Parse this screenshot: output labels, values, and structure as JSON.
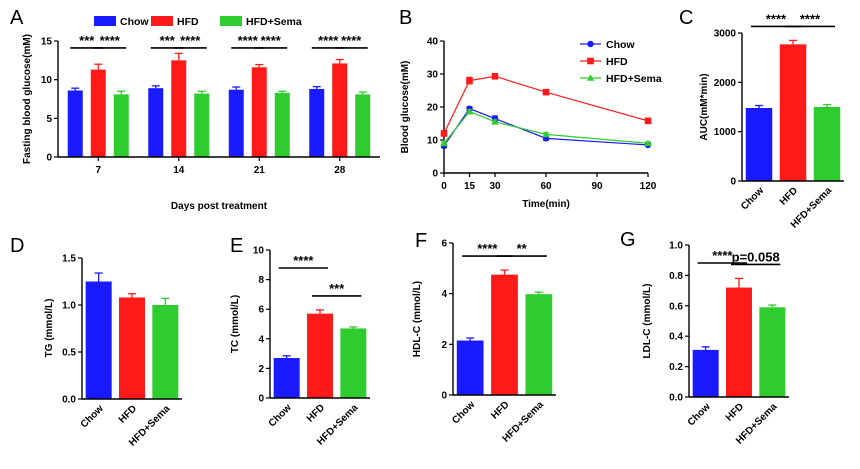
{
  "colors": {
    "Chow": "#1a1aff",
    "HFD": "#ff1a1a",
    "HFD+Sema": "#2ecc2e"
  },
  "chart_data": [
    {
      "panel": "A",
      "type": "bar",
      "xlabel": "Days post treatment",
      "ylabel": "Fasting blood glucose(mM)",
      "categories": [
        "7",
        "14",
        "21",
        "28"
      ],
      "ylim": [
        0,
        15
      ],
      "yticks": [
        "0",
        "5",
        "10",
        "15"
      ],
      "legend": [
        "Chow",
        "HFD",
        "HFD+Sema"
      ],
      "legend_position": "top",
      "series": [
        {
          "name": "Chow",
          "values": [
            8.6,
            8.9,
            8.7,
            8.8
          ],
          "errors": [
            0.3,
            0.3,
            0.35,
            0.3
          ]
        },
        {
          "name": "HFD",
          "values": [
            11.3,
            12.5,
            11.6,
            12.1
          ],
          "errors": [
            0.7,
            0.9,
            0.35,
            0.5
          ]
        },
        {
          "name": "HFD+Sema",
          "values": [
            8.1,
            8.2,
            8.3,
            8.1
          ],
          "errors": [
            0.4,
            0.3,
            0.2,
            0.3
          ]
        }
      ],
      "significance": [
        {
          "group": 0,
          "from": 0,
          "to": 1,
          "label": "***"
        },
        {
          "group": 0,
          "from": 1,
          "to": 2,
          "label": "****"
        },
        {
          "group": 1,
          "from": 0,
          "to": 1,
          "label": "***"
        },
        {
          "group": 1,
          "from": 1,
          "to": 2,
          "label": "****"
        },
        {
          "group": 2,
          "from": 0,
          "to": 1,
          "label": "****"
        },
        {
          "group": 2,
          "from": 1,
          "to": 2,
          "label": "****"
        },
        {
          "group": 3,
          "from": 0,
          "to": 1,
          "label": "****"
        },
        {
          "group": 3,
          "from": 1,
          "to": 2,
          "label": "****"
        }
      ]
    },
    {
      "panel": "B",
      "type": "line",
      "xlabel": "Time(min)",
      "ylabel": "Blood glucose(mM)",
      "x": [
        0,
        15,
        30,
        60,
        120
      ],
      "xticks": [
        "0",
        "15",
        "30",
        "60",
        "90",
        "120"
      ],
      "xtick_values": [
        0,
        15,
        30,
        60,
        90,
        120
      ],
      "xlim": [
        0,
        120
      ],
      "ylim": [
        0,
        40
      ],
      "yticks": [
        "0",
        "10",
        "20",
        "30",
        "40"
      ],
      "legend": [
        "Chow",
        "HFD",
        "HFD+Sema"
      ],
      "legend_position": "top-right",
      "series": [
        {
          "name": "Chow",
          "marker": "circle",
          "values": [
            8.2,
            19.5,
            16.5,
            10.5,
            8.5
          ],
          "errors": [
            0.5,
            0.6,
            0.8,
            0.5,
            0.3
          ]
        },
        {
          "name": "HFD",
          "marker": "square",
          "values": [
            12.0,
            28.0,
            29.3,
            24.5,
            15.8
          ],
          "errors": [
            0.8,
            1.0,
            0.6,
            0.6,
            0.5
          ]
        },
        {
          "name": "HFD+Sema",
          "marker": "triangle",
          "values": [
            9.0,
            18.6,
            15.5,
            11.7,
            9.0
          ],
          "errors": [
            0.4,
            0.6,
            0.6,
            0.5,
            0.4
          ]
        }
      ]
    },
    {
      "panel": "C",
      "type": "bar",
      "ylabel": "AUC(mM*min)",
      "categories": [
        "Chow",
        "HFD",
        "HFD+Sema"
      ],
      "values": [
        1480,
        2770,
        1500
      ],
      "errors": [
        50,
        80,
        50
      ],
      "ylim": [
        0,
        3000
      ],
      "yticks": [
        "0",
        "1000",
        "2000",
        "3000"
      ],
      "significance": [
        {
          "from": 0,
          "to": 1,
          "label": "****"
        },
        {
          "from": 1,
          "to": 2,
          "label": "****"
        }
      ]
    },
    {
      "panel": "D",
      "type": "bar",
      "ylabel": "TG (mmol/L)",
      "categories": [
        "Chow",
        "HFD",
        "HFD+Sema"
      ],
      "values": [
        1.25,
        1.08,
        1.0
      ],
      "errors": [
        0.09,
        0.04,
        0.07
      ],
      "ylim": [
        0,
        1.5
      ],
      "yticks": [
        "0.0",
        "0.5",
        "1.0",
        "1.5"
      ],
      "significance": []
    },
    {
      "panel": "E",
      "type": "bar",
      "ylabel": "TC (mmol/L)",
      "categories": [
        "Chow",
        "HFD",
        "HFD+Sema"
      ],
      "values": [
        2.7,
        5.7,
        4.7
      ],
      "errors": [
        0.15,
        0.25,
        0.1
      ],
      "ylim": [
        0,
        10
      ],
      "yticks": [
        "0",
        "2",
        "4",
        "6",
        "8",
        "10"
      ],
      "significance": [
        {
          "from": 0,
          "to": 1,
          "label": "****"
        },
        {
          "from": 1,
          "to": 2,
          "label": "***"
        }
      ]
    },
    {
      "panel": "F",
      "type": "bar",
      "ylabel": "HDL-C (mmol/L)",
      "categories": [
        "Chow",
        "HFD",
        "HFD+Sema"
      ],
      "values": [
        2.15,
        4.75,
        3.98
      ],
      "errors": [
        0.1,
        0.18,
        0.08
      ],
      "ylim": [
        0,
        6
      ],
      "yticks": [
        "0",
        "2",
        "4",
        "6"
      ],
      "significance": [
        {
          "from": 0,
          "to": 1,
          "label": "****"
        },
        {
          "from": 1,
          "to": 2,
          "label": "**"
        }
      ]
    },
    {
      "panel": "G",
      "type": "bar",
      "ylabel": "LDL-C (mmol/L)",
      "categories": [
        "Chow",
        "HFD",
        "HFD+Sema"
      ],
      "values": [
        0.31,
        0.72,
        0.59
      ],
      "errors": [
        0.02,
        0.06,
        0.015
      ],
      "ylim": [
        0,
        1.0
      ],
      "yticks": [
        "0.0",
        "0.2",
        "0.4",
        "0.6",
        "0.8",
        "1.0"
      ],
      "significance": [
        {
          "from": 0,
          "to": 1,
          "label": "****"
        },
        {
          "from": 1,
          "to": 2,
          "label": "p=0.058"
        }
      ]
    }
  ]
}
